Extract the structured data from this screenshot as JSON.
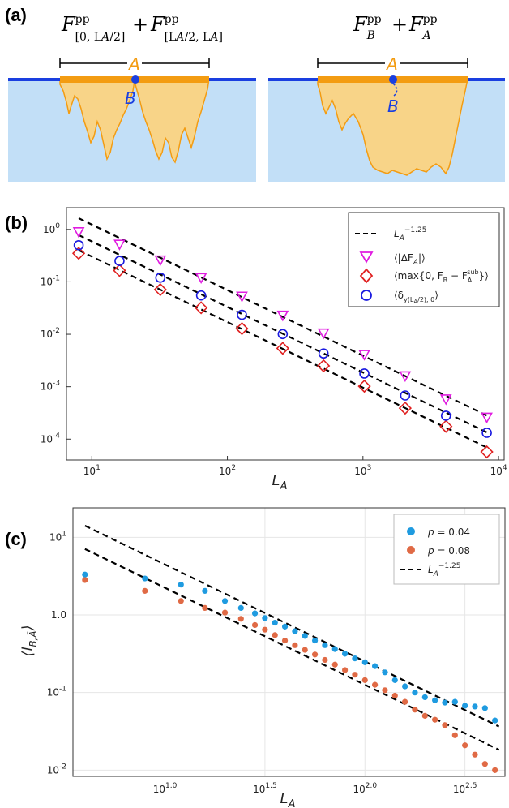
{
  "panel_a": {
    "label": "(a)",
    "left_formula": {
      "f1": "F",
      "s1": "pp",
      "sub1": "[0, L",
      "subA": "A",
      "sub1end": "/2]",
      "plus": "+",
      "f2": "F",
      "s2": "pp",
      "sub2": "[L",
      "sub2A": "A",
      "sub2mid": "/2, L",
      "sub2A2": "A",
      "sub2end": "]"
    },
    "right_formula": {
      "f1": "F",
      "s1": "pp",
      "sub1": "B",
      "plus": "+",
      "f2": "F",
      "s2": "pp",
      "sub2": "A"
    },
    "label_A": "A",
    "label_B": "B",
    "colors": {
      "water": "#c2dff7",
      "line": "#1a3fe0",
      "fill": "#f8d488",
      "edge": "#f39c12",
      "labelA": "#f39c12",
      "labelB": "#1a3fe0"
    }
  },
  "chart_data": [
    {
      "type": "scatter",
      "panel": "(b)",
      "xlabel": "L_A",
      "xscale": "log",
      "yscale": "log",
      "xlim": [
        6.5,
        11000
      ],
      "ylim": [
        4e-05,
        2.6
      ],
      "xticks": [
        {
          "v": 10,
          "b": "10",
          "e": "1"
        },
        {
          "v": 100,
          "b": "10",
          "e": "2"
        },
        {
          "v": 1000,
          "b": "10",
          "e": "3"
        },
        {
          "v": 10000,
          "b": "10",
          "e": "4"
        }
      ],
      "yticks": [
        {
          "v": 1,
          "b": "10",
          "e": "0"
        },
        {
          "v": 0.1,
          "b": "10",
          "e": "-1"
        },
        {
          "v": 0.01,
          "b": "10",
          "e": "-2"
        },
        {
          "v": 0.001,
          "b": "10",
          "e": "-3"
        },
        {
          "v": 0.0001,
          "b": "10",
          "e": "-4"
        }
      ],
      "legend_position": "top-right",
      "fit_lines": [
        {
          "name": "L_A^-1.25",
          "prefactor": 22,
          "exponent": -1.25,
          "x_range": [
            8,
            8700
          ]
        },
        {
          "name": "",
          "prefactor": 10.5,
          "exponent": -1.25,
          "x_range": [
            8,
            8700
          ]
        },
        {
          "name": "",
          "prefactor": 5.4,
          "exponent": -1.25,
          "x_range": [
            8,
            8700
          ]
        }
      ],
      "series": [
        {
          "name": "⟨|ΔF_A|⟩",
          "marker": "triangle-down",
          "color": "#e01ce0",
          "x": [
            8,
            16,
            32,
            64,
            128,
            256,
            512,
            1024,
            2048,
            4096,
            8192
          ],
          "y": [
            0.9,
            0.52,
            0.26,
            0.12,
            0.053,
            0.023,
            0.0105,
            0.0041,
            0.0016,
            0.00058,
            0.00026
          ]
        },
        {
          "name": "⟨max{0, F_B − F_A^sub}⟩",
          "marker": "diamond",
          "color": "#e02020",
          "x": [
            8,
            16,
            32,
            64,
            128,
            256,
            512,
            1024,
            2048,
            4096,
            8192
          ],
          "y": [
            0.35,
            0.165,
            0.071,
            0.032,
            0.0128,
            0.0054,
            0.0025,
            0.00102,
            0.00039,
            0.000175,
            5.7e-05
          ]
        },
        {
          "name": "⟨δ_y(L_A/2),0⟩",
          "marker": "circle",
          "color": "#1a1ae0",
          "x": [
            8,
            16,
            32,
            64,
            128,
            256,
            512,
            1024,
            2048,
            4096,
            8192
          ],
          "y": [
            0.5,
            0.25,
            0.12,
            0.055,
            0.0235,
            0.0101,
            0.0043,
            0.00178,
            0.00068,
            0.00028,
            0.000132
          ]
        }
      ],
      "legend": [
        {
          "kind": "line",
          "t": "L",
          "sub": "A",
          "sup": "−1.25"
        },
        {
          "kind": "triangle-down",
          "color": "#e01ce0",
          "pre": "⟨|ΔF",
          "sub": "A",
          "post": "|⟩"
        },
        {
          "kind": "diamond",
          "color": "#e02020",
          "pre": "⟨max{0, F",
          "sub": "B",
          "mid": " − F",
          "sub2": "A",
          "sup2": "sub",
          "post": "}⟩"
        },
        {
          "kind": "circle",
          "color": "#1a1ae0",
          "pre": "⟨δ",
          "sub": "y(L",
          "subsub": "A",
          "subend": "/2), 0",
          "post": "⟩"
        }
      ]
    },
    {
      "type": "scatter",
      "panel": "(c)",
      "xlabel": "L_A",
      "ylabel": "⟨l_B,Ā⟩",
      "xscale": "log",
      "yscale": "log",
      "xlim_log10": [
        0.54,
        2.7
      ],
      "ylim_log10": [
        -2.08,
        1.38
      ],
      "xticks": [
        {
          "v": 1.0,
          "b": "10",
          "e": "1.0"
        },
        {
          "v": 1.5,
          "b": "10",
          "e": "1.5"
        },
        {
          "v": 2.0,
          "b": "10",
          "e": "2.0"
        },
        {
          "v": 2.5,
          "b": "10",
          "e": "2.5"
        }
      ],
      "yticks": [
        {
          "v": 1,
          "b": "10",
          "e": "1"
        },
        {
          "v": 0,
          "b": "1.0",
          "e": ""
        },
        {
          "v": -1,
          "b": "10",
          "e": "-1"
        },
        {
          "v": -2,
          "b": "10",
          "e": "-2"
        }
      ],
      "grid": true,
      "legend_position": "top-right",
      "fit_lines": [
        {
          "name": "L_A^-1.25",
          "log10_prefactor": 1.9,
          "exponent": -1.25,
          "logx_range": [
            0.6,
            2.67
          ]
        },
        {
          "name": "",
          "log10_prefactor": 1.6,
          "exponent": -1.25,
          "logx_range": [
            0.6,
            2.67
          ]
        }
      ],
      "series": [
        {
          "name": "p = 0.04",
          "color": "#1f9be0",
          "log10x": [
            0.6,
            0.9,
            1.08,
            1.2,
            1.3,
            1.38,
            1.45,
            1.5,
            1.55,
            1.6,
            1.65,
            1.7,
            1.75,
            1.8,
            1.85,
            1.9,
            1.95,
            2.0,
            2.05,
            2.1,
            2.15,
            2.2,
            2.25,
            2.3,
            2.35,
            2.4,
            2.45,
            2.5,
            2.55,
            2.6,
            2.65
          ],
          "log10y": [
            0.52,
            0.47,
            0.39,
            0.31,
            0.18,
            0.09,
            0.02,
            -0.04,
            -0.1,
            -0.15,
            -0.21,
            -0.27,
            -0.33,
            -0.39,
            -0.44,
            -0.5,
            -0.56,
            -0.61,
            -0.66,
            -0.74,
            -0.84,
            -0.92,
            -1.0,
            -1.06,
            -1.1,
            -1.13,
            -1.12,
            -1.17,
            -1.18,
            -1.2,
            -1.36
          ]
        },
        {
          "name": "p = 0.08",
          "color": "#e06a45",
          "log10x": [
            0.6,
            0.9,
            1.08,
            1.2,
            1.3,
            1.38,
            1.45,
            1.5,
            1.55,
            1.6,
            1.65,
            1.7,
            1.75,
            1.8,
            1.85,
            1.9,
            1.95,
            2.0,
            2.05,
            2.1,
            2.15,
            2.2,
            2.25,
            2.3,
            2.35,
            2.4,
            2.45,
            2.5,
            2.55,
            2.6,
            2.65
          ],
          "log10y": [
            0.45,
            0.31,
            0.18,
            0.09,
            0.03,
            -0.05,
            -0.13,
            -0.19,
            -0.26,
            -0.33,
            -0.39,
            -0.45,
            -0.51,
            -0.58,
            -0.64,
            -0.71,
            -0.77,
            -0.84,
            -0.9,
            -0.97,
            -1.04,
            -1.12,
            -1.22,
            -1.3,
            -1.35,
            -1.42,
            -1.55,
            -1.68,
            -1.8,
            -1.92,
            -2.0
          ]
        }
      ],
      "legend": [
        {
          "kind": "dot",
          "color": "#1f9be0",
          "pre": "p",
          "post": " = 0.04"
        },
        {
          "kind": "dot",
          "color": "#e06a45",
          "pre": "p",
          "post": " = 0.08"
        },
        {
          "kind": "line",
          "t": "L",
          "sub": "A",
          "sup": "−1.25"
        }
      ]
    }
  ]
}
